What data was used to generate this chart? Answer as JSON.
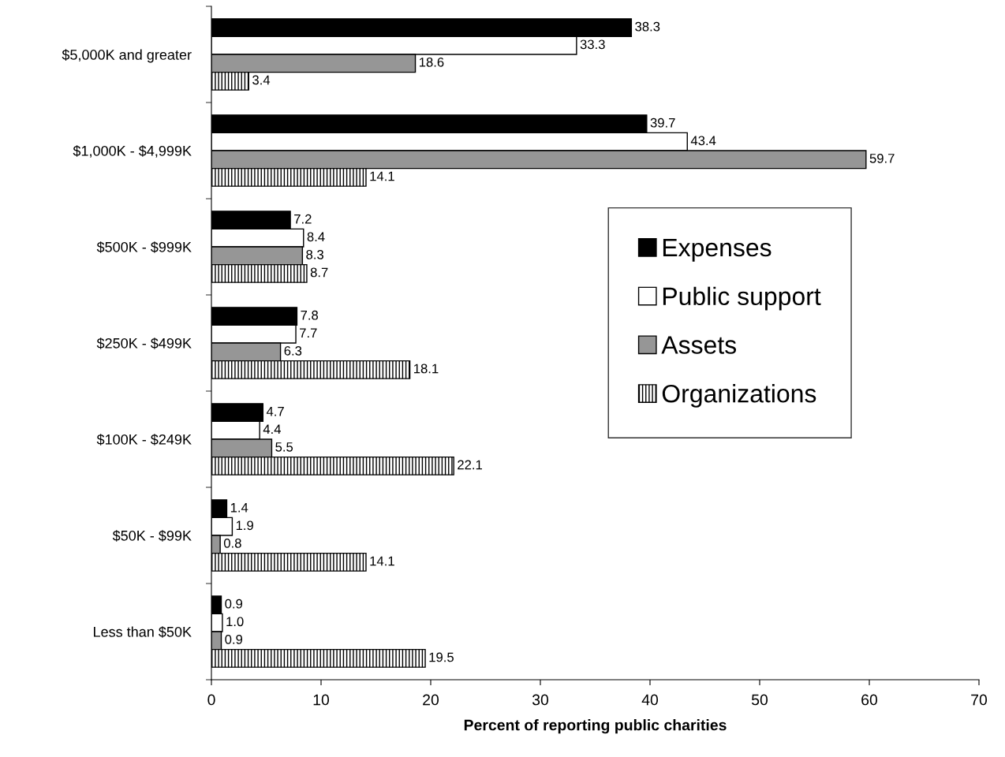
{
  "chart_data": {
    "type": "bar",
    "orientation": "horizontal",
    "xlabel": "Percent of reporting public charities",
    "categories": [
      "$5,000K and greater",
      "$1,000K - $4,999K",
      "$500K - $999K",
      "$250K - $499K",
      "$100K - $249K",
      "$50K - $99K",
      "Less than $50K"
    ],
    "series": [
      {
        "name": "Expenses",
        "color": "#000000",
        "values": [
          38.3,
          39.7,
          7.2,
          7.8,
          4.7,
          1.4,
          0.9
        ],
        "value_labels": [
          "38.3",
          "39.7",
          "7.2",
          "7.8",
          "4.7",
          "1.4",
          "0.9"
        ]
      },
      {
        "name": "Public support",
        "color": "#ffffff",
        "values": [
          33.3,
          43.4,
          8.4,
          7.7,
          4.4,
          1.9,
          1.0
        ],
        "value_labels": [
          "33.3",
          "43.4",
          "8.4",
          "7.7",
          "4.4",
          "1.9",
          "1.0"
        ]
      },
      {
        "name": "Assets",
        "color": "#969696",
        "values": [
          18.6,
          59.7,
          8.3,
          6.3,
          5.5,
          0.8,
          0.9
        ],
        "value_labels": [
          "18.6",
          "59.7",
          "8.3",
          "6.3",
          "5.5",
          "0.8",
          "0.9"
        ]
      },
      {
        "name": "Organizations",
        "color": "#000000",
        "values": [
          3.4,
          14.1,
          8.7,
          18.1,
          22.1,
          14.1,
          19.5
        ],
        "value_labels": [
          "3.4",
          "14.1",
          "8.7",
          "18.1",
          "22.1",
          "14.1",
          "19.5"
        ]
      }
    ],
    "xlim": [
      0,
      70
    ],
    "xticks": [
      0,
      10,
      20,
      30,
      40,
      50,
      60,
      70
    ],
    "grid": false,
    "legend": "right"
  }
}
